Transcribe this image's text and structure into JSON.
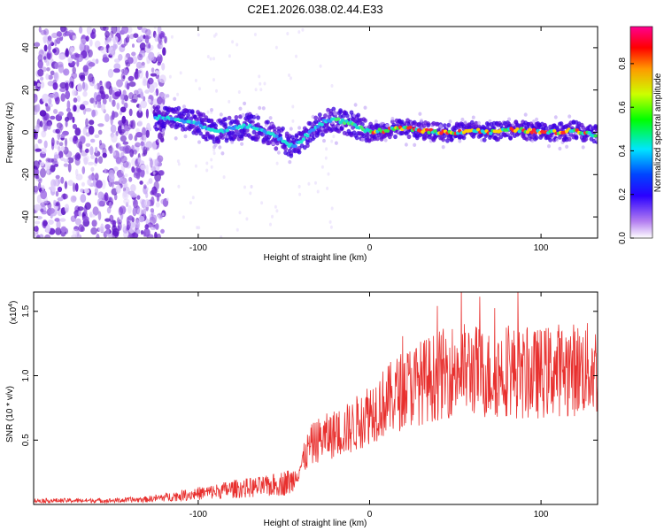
{
  "title": "C2E1.2026.038.02.44.E33",
  "chart_data": [
    {
      "type": "heatmap",
      "name": "spectrogram",
      "xlabel": "Height of straight line (km)",
      "ylabel": "Frequency (Hz)",
      "xlim": [
        -196,
        133
      ],
      "ylim": [
        -50,
        50
      ],
      "xticks": [
        -100,
        0,
        100
      ],
      "yticks": [
        -40,
        -20,
        0,
        20,
        40
      ],
      "noise_region_x": [
        -196,
        -125
      ],
      "ridge": {
        "x": [
          -125,
          -110,
          -100,
          -90,
          -80,
          -70,
          -60,
          -50,
          -45,
          -40,
          -35,
          -30,
          -25,
          -20,
          -10,
          0,
          10,
          20,
          30,
          40,
          50,
          60,
          70,
          80,
          90,
          100,
          110,
          120,
          130
        ],
        "freq": [
          7,
          6,
          4,
          0,
          2,
          3,
          0,
          -4,
          -7,
          -4,
          0,
          3,
          6,
          6,
          4,
          0,
          1,
          2,
          1,
          0,
          0,
          1,
          0,
          1,
          1,
          0,
          0,
          1,
          -1
        ]
      },
      "colorbar": {
        "label": "Normalized spectral amplitude",
        "ticks": [
          0.0,
          0.2,
          0.4,
          0.6,
          0.8
        ],
        "range": [
          0,
          0.97
        ],
        "colors": [
          "#ffffff",
          "#7b00d4",
          "#0000ff",
          "#00ffff",
          "#00ff00",
          "#ffff00",
          "#ff8000",
          "#ff0000",
          "#ff0088"
        ]
      },
      "color": "#7a3fd6"
    },
    {
      "type": "line",
      "name": "snr",
      "xlabel": "Height of straight line (km)",
      "ylabel": "SNR (10 * v/v)",
      "multiplier_base": "(x10",
      "multiplier_exp": "4",
      "multiplier_close": ")",
      "xlim": [
        -196,
        133
      ],
      "ylim": [
        0,
        1.65
      ],
      "xticks": [
        -100,
        0,
        100
      ],
      "yticks": [
        0.5,
        1.0,
        1.5
      ],
      "ytick_labels": [
        "0.5",
        "1.0",
        "1.5"
      ],
      "envelope_x": [
        -196,
        -150,
        -130,
        -110,
        -90,
        -80,
        -60,
        -45,
        -40,
        -35,
        -30,
        -20,
        -10,
        0,
        10,
        20,
        30,
        40,
        50,
        60,
        70,
        80,
        90,
        100,
        110,
        120,
        133
      ],
      "envelope_y": [
        0.03,
        0.03,
        0.04,
        0.07,
        0.1,
        0.12,
        0.14,
        0.18,
        0.3,
        0.45,
        0.5,
        0.55,
        0.6,
        0.72,
        0.8,
        0.9,
        0.95,
        1.0,
        1.05,
        1.05,
        1.0,
        1.05,
        1.0,
        1.02,
        1.05,
        1.05,
        1.05
      ],
      "color": "#e8302e"
    }
  ]
}
